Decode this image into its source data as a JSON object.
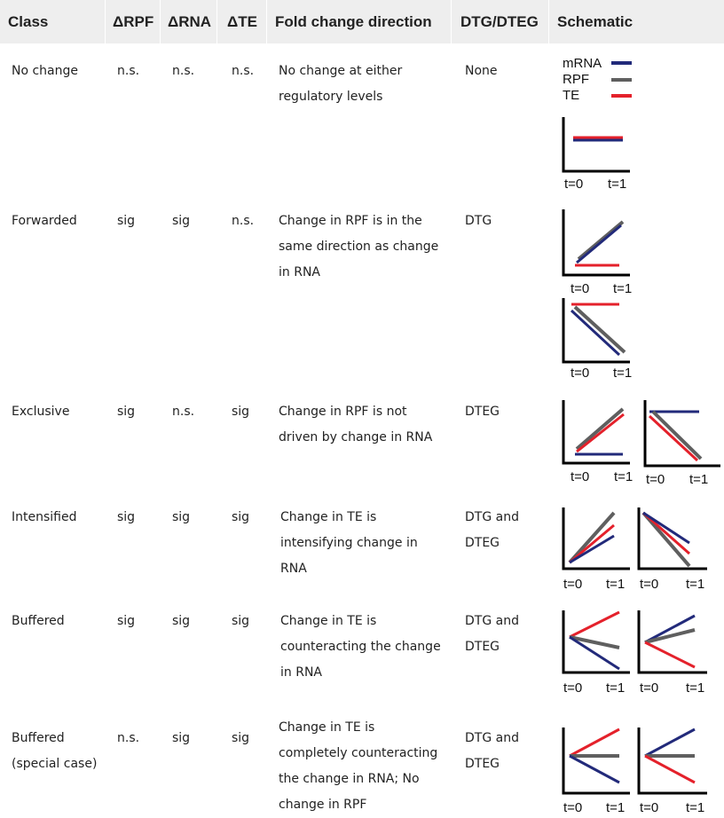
{
  "header": {
    "class": "Class",
    "drpf": "ΔRPF",
    "drna": "ΔRNA",
    "dte": "ΔTE",
    "fold": "Fold change direction",
    "dtg": "DTG/DTEG",
    "schematic": "Schematic"
  },
  "legend": {
    "mrna": "mRNA",
    "rpf": "RPF",
    "te": "TE"
  },
  "axis": {
    "t0": "t=0",
    "t1": "t=1"
  },
  "colors": {
    "mrna": "#222a7a",
    "rpf": "#5f5f5f",
    "te": "#e4212b",
    "header_bg": "#eeeeee"
  },
  "rows": [
    {
      "class_lines": [
        "No change"
      ],
      "drpf": "n.s.",
      "drna": "n.s.",
      "dte": "n.s.",
      "fold_lines": [
        "No change at either",
        "regulatory levels"
      ],
      "dtg_lines": [
        "None"
      ]
    },
    {
      "class_lines": [
        "Forwarded"
      ],
      "drpf": "sig",
      "drna": "sig",
      "dte": "n.s.",
      "fold_lines": [
        "Change in RPF is in the",
        "same direction as change",
        "in RNA"
      ],
      "dtg_lines": [
        "DTG"
      ]
    },
    {
      "class_lines": [
        "Exclusive"
      ],
      "drpf": "sig",
      "drna": "n.s.",
      "dte": "sig",
      "fold_lines": [
        "Change in RPF is not",
        "driven by change in RNA"
      ],
      "dtg_lines": [
        "DTEG"
      ]
    },
    {
      "class_lines": [
        "Intensified"
      ],
      "drpf": "sig",
      "drna": "sig",
      "dte": "sig",
      "fold_lines": [
        "Change in TE is",
        "intensifying change in",
        "RNA"
      ],
      "dtg_lines": [
        "DTG and",
        "DTEG"
      ]
    },
    {
      "class_lines": [
        "Buffered"
      ],
      "drpf": "sig",
      "drna": "sig",
      "dte": "sig",
      "fold_lines": [
        "Change in TE is",
        "counteracting the change",
        "in RNA"
      ],
      "dtg_lines": [
        "DTG and",
        "DTEG"
      ]
    },
    {
      "class_lines": [
        "Buffered",
        "(special case)"
      ],
      "drpf": "n.s.",
      "drna": "sig",
      "dte": "sig",
      "fold_lines": [
        "Change in TE is",
        "completely counteracting",
        "the change in RNA; No",
        "change in RPF"
      ],
      "dtg_lines": [
        "DTG and",
        "DTEG"
      ]
    }
  ]
}
